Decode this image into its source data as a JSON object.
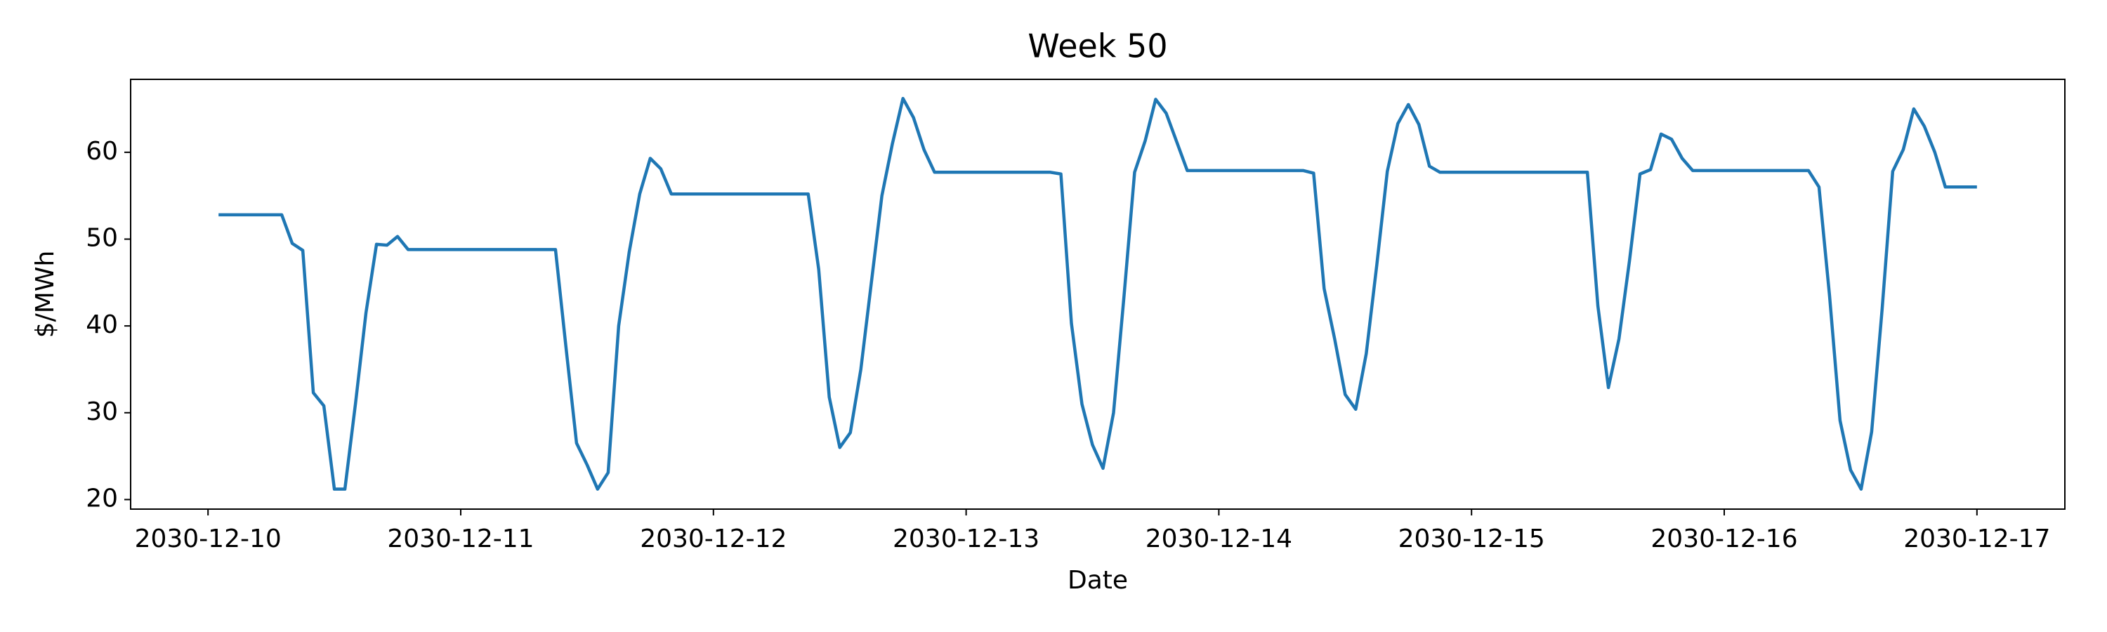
{
  "chart_data": {
    "type": "line",
    "title": "Week 50",
    "xlabel": "Date",
    "ylabel": "$/MWh",
    "x": [
      "2030-12-10 01:00",
      "2030-12-10 02:00",
      "2030-12-10 03:00",
      "2030-12-10 04:00",
      "2030-12-10 05:00",
      "2030-12-10 06:00",
      "2030-12-10 07:00",
      "2030-12-10 08:00",
      "2030-12-10 09:00",
      "2030-12-10 10:00",
      "2030-12-10 11:00",
      "2030-12-10 12:00",
      "2030-12-10 13:00",
      "2030-12-10 14:00",
      "2030-12-10 15:00",
      "2030-12-10 16:00",
      "2030-12-10 17:00",
      "2030-12-10 18:00",
      "2030-12-10 19:00",
      "2030-12-10 20:00",
      "2030-12-10 21:00",
      "2030-12-10 22:00",
      "2030-12-10 23:00",
      "2030-12-11 00:00",
      "2030-12-11 01:00",
      "2030-12-11 02:00",
      "2030-12-11 03:00",
      "2030-12-11 04:00",
      "2030-12-11 05:00",
      "2030-12-11 06:00",
      "2030-12-11 07:00",
      "2030-12-11 08:00",
      "2030-12-11 09:00",
      "2030-12-11 10:00",
      "2030-12-11 11:00",
      "2030-12-11 12:00",
      "2030-12-11 13:00",
      "2030-12-11 14:00",
      "2030-12-11 15:00",
      "2030-12-11 16:00",
      "2030-12-11 17:00",
      "2030-12-11 18:00",
      "2030-12-11 19:00",
      "2030-12-11 20:00",
      "2030-12-11 21:00",
      "2030-12-11 22:00",
      "2030-12-11 23:00",
      "2030-12-12 00:00",
      "2030-12-12 01:00",
      "2030-12-12 02:00",
      "2030-12-12 03:00",
      "2030-12-12 04:00",
      "2030-12-12 05:00",
      "2030-12-12 06:00",
      "2030-12-12 07:00",
      "2030-12-12 08:00",
      "2030-12-12 09:00",
      "2030-12-12 10:00",
      "2030-12-12 11:00",
      "2030-12-12 12:00",
      "2030-12-12 13:00",
      "2030-12-12 14:00",
      "2030-12-12 15:00",
      "2030-12-12 16:00",
      "2030-12-12 17:00",
      "2030-12-12 18:00",
      "2030-12-12 19:00",
      "2030-12-12 20:00",
      "2030-12-12 21:00",
      "2030-12-12 22:00",
      "2030-12-12 23:00",
      "2030-12-13 00:00",
      "2030-12-13 01:00",
      "2030-12-13 02:00",
      "2030-12-13 03:00",
      "2030-12-13 04:00",
      "2030-12-13 05:00",
      "2030-12-13 06:00",
      "2030-12-13 07:00",
      "2030-12-13 08:00",
      "2030-12-13 09:00",
      "2030-12-13 10:00",
      "2030-12-13 11:00",
      "2030-12-13 12:00",
      "2030-12-13 13:00",
      "2030-12-13 14:00",
      "2030-12-13 15:00",
      "2030-12-13 16:00",
      "2030-12-13 17:00",
      "2030-12-13 18:00",
      "2030-12-13 19:00",
      "2030-12-13 20:00",
      "2030-12-13 21:00",
      "2030-12-13 22:00",
      "2030-12-13 23:00",
      "2030-12-14 00:00",
      "2030-12-14 01:00",
      "2030-12-14 02:00",
      "2030-12-14 03:00",
      "2030-12-14 04:00",
      "2030-12-14 05:00",
      "2030-12-14 06:00",
      "2030-12-14 07:00",
      "2030-12-14 08:00",
      "2030-12-14 09:00",
      "2030-12-14 10:00",
      "2030-12-14 11:00",
      "2030-12-14 12:00",
      "2030-12-14 13:00",
      "2030-12-14 14:00",
      "2030-12-14 15:00",
      "2030-12-14 16:00",
      "2030-12-14 17:00",
      "2030-12-14 18:00",
      "2030-12-14 19:00",
      "2030-12-14 20:00",
      "2030-12-14 21:00",
      "2030-12-14 22:00",
      "2030-12-14 23:00",
      "2030-12-15 00:00",
      "2030-12-15 01:00",
      "2030-12-15 02:00",
      "2030-12-15 03:00",
      "2030-12-15 04:00",
      "2030-12-15 05:00",
      "2030-12-15 06:00",
      "2030-12-15 07:00",
      "2030-12-15 08:00",
      "2030-12-15 09:00",
      "2030-12-15 10:00",
      "2030-12-15 11:00",
      "2030-12-15 12:00",
      "2030-12-15 13:00",
      "2030-12-15 14:00",
      "2030-12-15 15:00",
      "2030-12-15 16:00",
      "2030-12-15 17:00",
      "2030-12-15 18:00",
      "2030-12-15 19:00",
      "2030-12-15 20:00",
      "2030-12-15 21:00",
      "2030-12-15 22:00",
      "2030-12-15 23:00",
      "2030-12-16 00:00",
      "2030-12-16 01:00",
      "2030-12-16 02:00",
      "2030-12-16 03:00",
      "2030-12-16 04:00",
      "2030-12-16 05:00",
      "2030-12-16 06:00",
      "2030-12-16 07:00",
      "2030-12-16 08:00",
      "2030-12-16 09:00",
      "2030-12-16 10:00",
      "2030-12-16 11:00",
      "2030-12-16 12:00",
      "2030-12-16 13:00",
      "2030-12-16 14:00",
      "2030-12-16 15:00",
      "2030-12-16 16:00",
      "2030-12-16 17:00",
      "2030-12-16 18:00",
      "2030-12-16 19:00",
      "2030-12-16 20:00",
      "2030-12-16 21:00",
      "2030-12-16 22:00",
      "2030-12-16 23:00",
      "2030-12-17 00:00"
    ],
    "series": [
      {
        "name": "$/MWh",
        "color": "#1f77b4",
        "values": [
          52.8,
          52.8,
          52.8,
          52.8,
          52.8,
          52.8,
          52.8,
          49.5,
          48.7,
          32.3,
          30.8,
          21.2,
          21.2,
          31,
          41.5,
          49.4,
          49.3,
          50.3,
          48.8,
          48.8,
          48.8,
          48.8,
          48.8,
          48.8,
          48.8,
          48.8,
          48.8,
          48.8,
          48.8,
          48.8,
          48.8,
          48.8,
          48.8,
          37.5,
          26.5,
          24,
          21.2,
          23.1,
          40,
          48.5,
          55.2,
          59.3,
          58.1,
          55.2,
          55.2,
          55.2,
          55.2,
          55.2,
          55.2,
          55.2,
          55.2,
          55.2,
          55.2,
          55.2,
          55.2,
          55.2,
          55.2,
          46.5,
          31.8,
          26,
          27.7,
          35,
          45,
          55,
          61,
          66.2,
          64,
          60.3,
          57.7,
          57.7,
          57.7,
          57.7,
          57.7,
          57.7,
          57.7,
          57.7,
          57.7,
          57.7,
          57.7,
          57.7,
          57.5,
          40.3,
          31,
          26.3,
          23.6,
          30,
          43.5,
          57.7,
          61.3,
          66.1,
          64.5,
          61.2,
          57.9,
          57.9,
          57.9,
          57.9,
          57.9,
          57.9,
          57.9,
          57.9,
          57.9,
          57.9,
          57.9,
          57.9,
          57.6,
          44.3,
          38.5,
          32.1,
          30.4,
          36.8,
          47,
          57.8,
          63.3,
          65.5,
          63.2,
          58.4,
          57.7,
          57.7,
          57.7,
          57.7,
          57.7,
          57.7,
          57.7,
          57.7,
          57.7,
          57.7,
          57.7,
          57.7,
          57.7,
          57.7,
          57.7,
          42.3,
          32.9,
          38.5,
          47.5,
          57.5,
          58,
          62.1,
          61.5,
          59.3,
          57.9,
          57.9,
          57.9,
          57.9,
          57.9,
          57.9,
          57.9,
          57.9,
          57.9,
          57.9,
          57.9,
          57.9,
          56,
          43.5,
          29.1,
          23.4,
          21.2,
          27.8,
          42,
          57.8,
          60.3,
          65,
          63,
          60,
          56,
          56,
          56,
          56
        ]
      }
    ],
    "xlim": [
      "2030-12-09 16:39",
      "2030-12-17 08:21"
    ],
    "xticks": [
      "2030-12-10",
      "2030-12-11",
      "2030-12-12",
      "2030-12-13",
      "2030-12-14",
      "2030-12-15",
      "2030-12-16",
      "2030-12-17"
    ],
    "ylim": [
      18.9,
      68.4
    ],
    "yticks": [
      20,
      30,
      40,
      50,
      60
    ],
    "grid": false
  }
}
